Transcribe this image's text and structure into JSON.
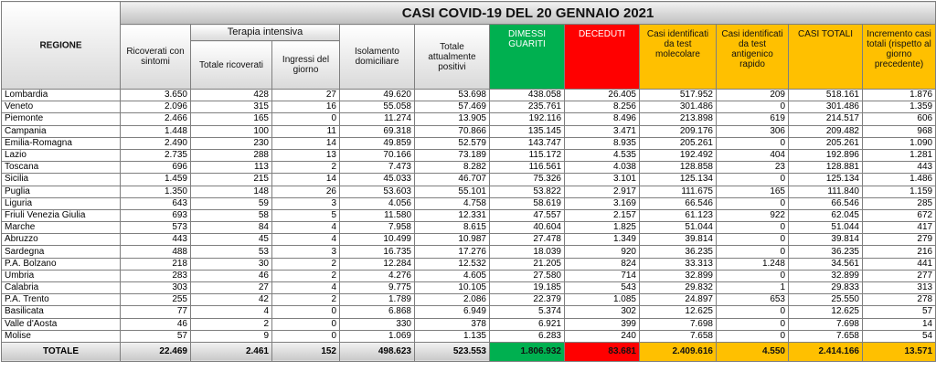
{
  "title": "CASI COVID-19 DEL 20 GENNAIO 2021",
  "headers": {
    "region": "REGIONE",
    "ricoverati": "Ricoverati con sintomi",
    "terapia_group": "Terapia intensiva",
    "ti_totale": "Totale ricoverati",
    "ti_ingressi": "Ingressi del giorno",
    "isolamento": "Isolamento domiciliare",
    "positivi": "Totale attualmente positivi",
    "dimessi": "DIMESSI GUARITI",
    "deceduti": "DECEDUTI",
    "molecolare": "Casi identificati da test molecolare",
    "antigenico": "Casi identificati da test antigenico rapido",
    "totali": "CASI TOTALI",
    "incremento": "Incremento casi totali (rispetto al giorno precedente)"
  },
  "rows": [
    {
      "region": "Lombardia",
      "v": [
        "3.650",
        "428",
        "27",
        "49.620",
        "53.698",
        "438.058",
        "26.405",
        "517.952",
        "209",
        "518.161",
        "1.876"
      ]
    },
    {
      "region": "Veneto",
      "v": [
        "2.096",
        "315",
        "16",
        "55.058",
        "57.469",
        "235.761",
        "8.256",
        "301.486",
        "0",
        "301.486",
        "1.359"
      ]
    },
    {
      "region": "Piemonte",
      "v": [
        "2.466",
        "165",
        "0",
        "11.274",
        "13.905",
        "192.116",
        "8.496",
        "213.898",
        "619",
        "214.517",
        "606"
      ]
    },
    {
      "region": "Campania",
      "v": [
        "1.448",
        "100",
        "11",
        "69.318",
        "70.866",
        "135.145",
        "3.471",
        "209.176",
        "306",
        "209.482",
        "968"
      ]
    },
    {
      "region": "Emilia-Romagna",
      "v": [
        "2.490",
        "230",
        "14",
        "49.859",
        "52.579",
        "143.747",
        "8.935",
        "205.261",
        "0",
        "205.261",
        "1.090"
      ]
    },
    {
      "region": "Lazio",
      "v": [
        "2.735",
        "288",
        "13",
        "70.166",
        "73.189",
        "115.172",
        "4.535",
        "192.492",
        "404",
        "192.896",
        "1.281"
      ]
    },
    {
      "region": "Toscana",
      "v": [
        "696",
        "113",
        "2",
        "7.473",
        "8.282",
        "116.561",
        "4.038",
        "128.858",
        "23",
        "128.881",
        "443"
      ]
    },
    {
      "region": "Sicilia",
      "v": [
        "1.459",
        "215",
        "14",
        "45.033",
        "46.707",
        "75.326",
        "3.101",
        "125.134",
        "0",
        "125.134",
        "1.486"
      ]
    },
    {
      "region": "Puglia",
      "v": [
        "1.350",
        "148",
        "26",
        "53.603",
        "55.101",
        "53.822",
        "2.917",
        "111.675",
        "165",
        "111.840",
        "1.159"
      ]
    },
    {
      "region": "Liguria",
      "v": [
        "643",
        "59",
        "3",
        "4.056",
        "4.758",
        "58.619",
        "3.169",
        "66.546",
        "0",
        "66.546",
        "285"
      ]
    },
    {
      "region": "Friuli Venezia Giulia",
      "v": [
        "693",
        "58",
        "5",
        "11.580",
        "12.331",
        "47.557",
        "2.157",
        "61.123",
        "922",
        "62.045",
        "672"
      ]
    },
    {
      "region": "Marche",
      "v": [
        "573",
        "84",
        "4",
        "7.958",
        "8.615",
        "40.604",
        "1.825",
        "51.044",
        "0",
        "51.044",
        "417"
      ]
    },
    {
      "region": "Abruzzo",
      "v": [
        "443",
        "45",
        "4",
        "10.499",
        "10.987",
        "27.478",
        "1.349",
        "39.814",
        "0",
        "39.814",
        "279"
      ]
    },
    {
      "region": "Sardegna",
      "v": [
        "488",
        "53",
        "3",
        "16.735",
        "17.276",
        "18.039",
        "920",
        "36.235",
        "0",
        "36.235",
        "216"
      ]
    },
    {
      "region": "P.A. Bolzano",
      "v": [
        "218",
        "30",
        "2",
        "12.284",
        "12.532",
        "21.205",
        "824",
        "33.313",
        "1.248",
        "34.561",
        "441"
      ]
    },
    {
      "region": "Umbria",
      "v": [
        "283",
        "46",
        "2",
        "4.276",
        "4.605",
        "27.580",
        "714",
        "32.899",
        "0",
        "32.899",
        "277"
      ]
    },
    {
      "region": "Calabria",
      "v": [
        "303",
        "27",
        "4",
        "9.775",
        "10.105",
        "19.185",
        "543",
        "29.832",
        "1",
        "29.833",
        "313"
      ]
    },
    {
      "region": "P.A. Trento",
      "v": [
        "255",
        "42",
        "2",
        "1.789",
        "2.086",
        "22.379",
        "1.085",
        "24.897",
        "653",
        "25.550",
        "278"
      ]
    },
    {
      "region": "Basilicata",
      "v": [
        "77",
        "4",
        "0",
        "6.868",
        "6.949",
        "5.374",
        "302",
        "12.625",
        "0",
        "12.625",
        "57"
      ]
    },
    {
      "region": "Valle d'Aosta",
      "v": [
        "46",
        "2",
        "0",
        "330",
        "378",
        "6.921",
        "399",
        "7.698",
        "0",
        "7.698",
        "14"
      ]
    },
    {
      "region": "Molise",
      "v": [
        "57",
        "9",
        "0",
        "1.069",
        "1.135",
        "6.283",
        "240",
        "7.658",
        "0",
        "7.658",
        "54"
      ]
    }
  ],
  "totals": {
    "label": "TOTALE",
    "v": [
      "22.469",
      "2.461",
      "152",
      "498.623",
      "523.553",
      "1.806.932",
      "83.681",
      "2.409.616",
      "4.550",
      "2.414.166",
      "13.571"
    ]
  }
}
